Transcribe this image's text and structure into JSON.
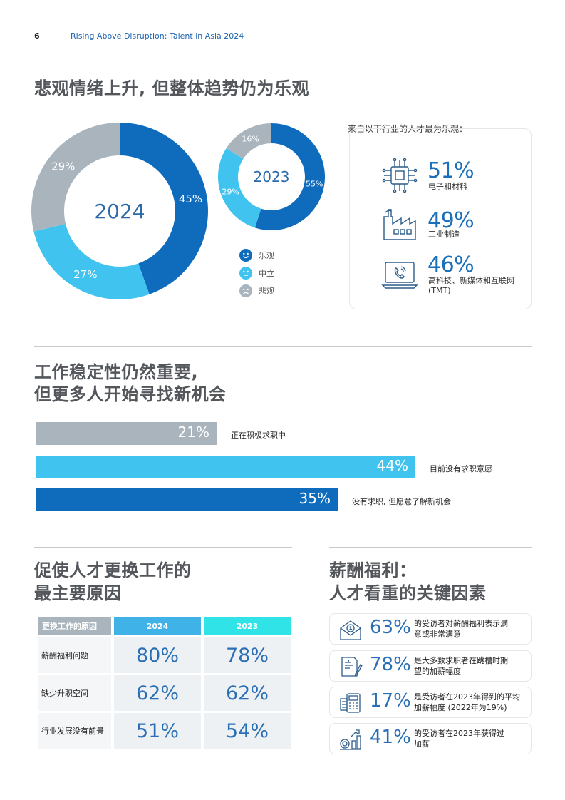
{
  "header": {
    "page_number": "6",
    "running_title": "Rising Above Disruption: Talent in Asia 2024"
  },
  "section1": {
    "title": "悲观情绪上升, 但整体趋势仍为乐观",
    "industries_intro": "来自以下行业的人才最为乐观：",
    "industries": [
      {
        "pct": "51%",
        "label": "电子和材料",
        "icon": "chip-icon"
      },
      {
        "pct": "49%",
        "label": "工业制造",
        "icon": "factory-icon"
      },
      {
        "pct": "46%",
        "label": "高科技、新媒体和互联网 (TMT)",
        "label_line1": "高科技、新媒体和互联网",
        "label_line2": "(TMT)",
        "icon": "laptop-phone-icon"
      }
    ],
    "legend": [
      {
        "label": "乐观",
        "color": "#0f6cbd",
        "icon": "smile-icon"
      },
      {
        "label": "中立",
        "color": "#41c3f0",
        "icon": "neutral-face-icon"
      },
      {
        "label": "悲观",
        "color": "#a9b4bd",
        "icon": "sad-face-icon"
      }
    ]
  },
  "section2": {
    "title_line1": "工作稳定性仍然重要,",
    "title_line2": "但更多人开始寻找新机会"
  },
  "section3": {
    "title_line1": "促使人才更换工作的",
    "title_line2": "最主要原因"
  },
  "section4": {
    "title_line1": "薪酬福利：",
    "title_line2": "人才看重的关键因素",
    "cards": [
      {
        "pct": "63%",
        "line1": "的受访者对薪酬福利表示满",
        "line2": "意或非常满意",
        "icon": "money-envelope-icon"
      },
      {
        "pct": "78%",
        "line1": "是大多数求职者在跳槽时期",
        "line2": "望的加薪幅度",
        "icon": "contract-pen-icon"
      },
      {
        "pct": "17%",
        "line1": "是受访者在2023年得到的平均",
        "line2": "加薪幅度 (2022年为19%)",
        "icon": "calculator-icon"
      },
      {
        "pct": "41%",
        "line1": "的受访者在2023年获得过",
        "line2": "加薪",
        "icon": "coins-growth-icon"
      }
    ]
  },
  "chart_data": [
    {
      "type": "pie",
      "center_label": "2024",
      "categories": [
        "乐观",
        "中立",
        "悲观"
      ],
      "values": [
        45,
        27,
        29
      ],
      "labels": [
        "45%",
        "27%",
        "29%"
      ],
      "colors": [
        "#0f6cbd",
        "#41c3f0",
        "#a9b4bd"
      ]
    },
    {
      "type": "pie",
      "center_label": "2023",
      "categories": [
        "乐观",
        "中立",
        "悲观"
      ],
      "values": [
        55,
        29,
        16
      ],
      "labels": [
        "55%",
        "29%",
        "16%"
      ],
      "colors": [
        "#0f6cbd",
        "#41c3f0",
        "#a9b4bd"
      ]
    },
    {
      "type": "bar",
      "orientation": "horizontal",
      "categories": [
        "正在积极求职中",
        "目前没有求职意愿",
        "没有求职, 但愿意了解新机会"
      ],
      "values": [
        21,
        44,
        35
      ],
      "labels": [
        "21%",
        "44%",
        "35%"
      ],
      "colors": [
        "#a9b4bd",
        "#41c3f0",
        "#0f6cbd"
      ]
    },
    {
      "type": "table",
      "columns": [
        "更换工作的原因",
        "2024",
        "2023"
      ],
      "column_colors": [
        "#a9b4bd",
        "#3fb3e8",
        "#2fe3e6"
      ],
      "rows": [
        [
          "薪酬福利问题",
          "80%",
          "78%"
        ],
        [
          "缺少升职空间",
          "62%",
          "62%"
        ],
        [
          "行业发展没有前景",
          "51%",
          "54%"
        ]
      ]
    }
  ]
}
